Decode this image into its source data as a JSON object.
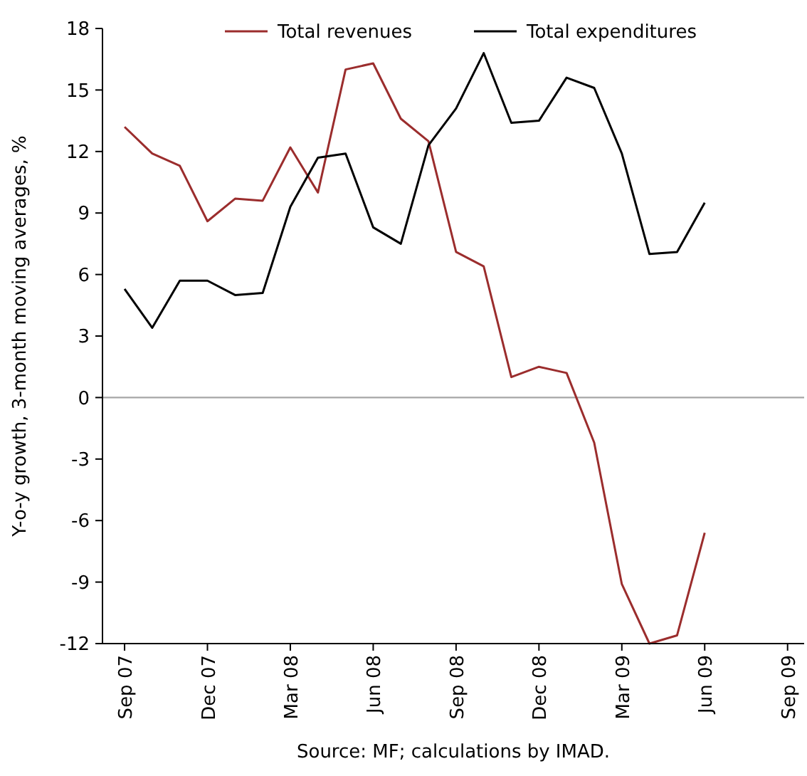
{
  "chart_data": {
    "type": "line",
    "ylabel": "Y-o-y growth, 3-month moving averages, %",
    "categories": [
      "Sep 07",
      null,
      null,
      "Dec 07",
      null,
      null,
      "Mar 08",
      null,
      null,
      "Jun 08",
      null,
      null,
      "Sep 08",
      null,
      null,
      "Dec 08",
      null,
      null,
      "Mar 09",
      null,
      null,
      "Jun 09",
      null,
      null,
      "Sep 09"
    ],
    "series": [
      {
        "name": "Total revenues",
        "color": "#9b2d2d",
        "values": [
          13.2,
          11.9,
          11.3,
          8.6,
          9.7,
          9.6,
          12.2,
          10.0,
          16.0,
          16.3,
          13.6,
          12.5,
          7.1,
          6.4,
          1.0,
          1.5,
          1.2,
          -2.2,
          -9.1,
          -12.0,
          -11.6,
          -6.6,
          null,
          null,
          null
        ]
      },
      {
        "name": "Total expenditures",
        "color": "#000000",
        "values": [
          5.3,
          3.4,
          5.7,
          5.7,
          5.0,
          5.1,
          9.3,
          11.7,
          11.9,
          8.3,
          7.5,
          12.3,
          14.1,
          16.8,
          13.4,
          13.5,
          15.6,
          15.1,
          11.9,
          7.0,
          7.1,
          9.5,
          null,
          null,
          null
        ]
      }
    ],
    "ylim": [
      -12,
      18
    ],
    "yticks": [
      -12,
      -9,
      -6,
      -3,
      0,
      3,
      6,
      9,
      12,
      15,
      18
    ],
    "ref_lines": [
      {
        "axis": "y",
        "value": 0,
        "color": "#a6a6a6"
      }
    ],
    "grid": false,
    "legend": "top",
    "marker": "none",
    "line_style": "solid",
    "annotations": [
      "Source: MF; calculations by IMAD."
    ]
  }
}
